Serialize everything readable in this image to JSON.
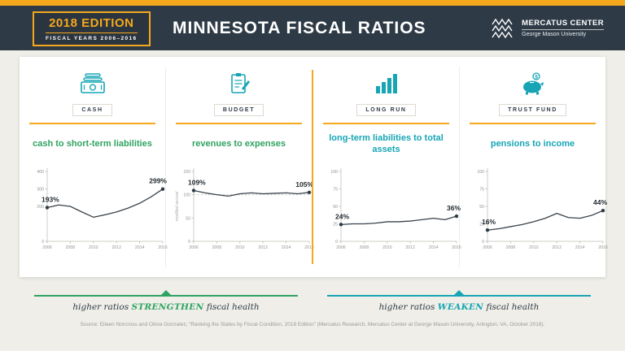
{
  "header": {
    "edition": "2018 EDITION",
    "fiscal_years": "FISCAL YEARS 2006–2016",
    "title": "MINNESOTA FISCAL RATIOS",
    "logo_name": "MERCATUS CENTER",
    "logo_sub": "George Mason University"
  },
  "panels": [
    {
      "category": "CASH",
      "title": "cash to short-term liabilities"
    },
    {
      "category": "BUDGET",
      "title": "revenues to expenses"
    },
    {
      "category": "LONG RUN",
      "title": "long-term liabilities to total assets"
    },
    {
      "category": "TRUST FUND",
      "title": "pensions to income"
    }
  ],
  "chart_data": [
    {
      "type": "line",
      "title": "cash to short-term liabilities",
      "x": [
        2006,
        2007,
        2008,
        2009,
        2010,
        2011,
        2012,
        2013,
        2014,
        2015,
        2016
      ],
      "values": [
        193,
        208,
        200,
        168,
        138,
        152,
        168,
        190,
        218,
        255,
        299
      ],
      "ylim": [
        0,
        400
      ],
      "yticks": [
        0,
        200,
        300,
        400
      ],
      "xticks": [
        2006,
        2008,
        2010,
        2012,
        2014,
        2016
      ],
      "start_label": "193%",
      "end_label": "299%"
    },
    {
      "type": "line",
      "title": "revenues to expenses",
      "x": [
        2006,
        2007,
        2008,
        2009,
        2010,
        2011,
        2012,
        2013,
        2014,
        2015,
        2016
      ],
      "values": [
        109,
        104,
        100,
        97,
        102,
        104,
        102,
        103,
        104,
        102,
        105
      ],
      "ylim": [
        0,
        150
      ],
      "yticks": [
        0,
        50,
        100,
        150
      ],
      "xticks": [
        2006,
        2008,
        2010,
        2012,
        2014,
        2016
      ],
      "benchmark": 100,
      "ylabel": "modified accrual",
      "start_label": "109%",
      "end_label": "105%"
    },
    {
      "type": "line",
      "title": "long-term liabilities to total assets",
      "x": [
        2006,
        2007,
        2008,
        2009,
        2010,
        2011,
        2012,
        2013,
        2014,
        2015,
        2016
      ],
      "values": [
        24,
        25,
        25,
        26,
        28,
        28,
        29,
        31,
        33,
        31,
        36
      ],
      "ylim": [
        0,
        100
      ],
      "yticks": [
        0,
        25,
        50,
        75,
        100
      ],
      "xticks": [
        2006,
        2008,
        2010,
        2012,
        2014,
        2016
      ],
      "start_label": "24%",
      "end_label": "36%"
    },
    {
      "type": "line",
      "title": "pensions to income",
      "x": [
        2006,
        2007,
        2008,
        2009,
        2010,
        2011,
        2012,
        2013,
        2014,
        2015,
        2016
      ],
      "values": [
        16,
        18,
        21,
        24,
        28,
        33,
        40,
        34,
        33,
        37,
        44
      ],
      "ylim": [
        0,
        100
      ],
      "yticks": [
        0,
        25,
        50,
        75,
        100
      ],
      "xticks": [
        2006,
        2008,
        2010,
        2012,
        2014,
        2016
      ],
      "start_label": "16%",
      "end_label": "44%"
    }
  ],
  "guides": {
    "strengthen": {
      "prefix": "higher ratios ",
      "keyword": "STRENGTHEN",
      "suffix": " fiscal health"
    },
    "weaken": {
      "prefix": "higher ratios ",
      "keyword": "WEAKEN",
      "suffix": " fiscal health"
    }
  },
  "source": "Source: Eileen Norcross and Olivia Gonzalez, “Ranking the States by Fiscal Condition, 2018 Edition” (Mercatus Research, Mercatus Center at George Mason University, Arlington, VA, October 2018).",
  "colors": {
    "navy": "#2e3b47",
    "yellow": "#f5a81c",
    "green": "#2fa361",
    "teal": "#17a5b5"
  }
}
